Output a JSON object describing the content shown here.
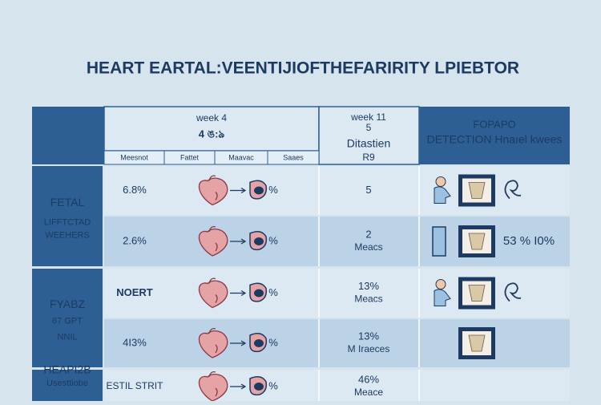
{
  "header": {
    "title": "HEART EARTAL:VEENTIJIOFTHEFARIRITY LPIEBTOR"
  },
  "table": {
    "columns": {
      "week4": {
        "title": "week 4",
        "subtitle": "4 ঙ:ঌ",
        "subcolumns": [
          "Meesnot",
          "Fattet",
          "Maavac",
          "Saaes"
        ]
      },
      "week11": {
        "lines": [
          "week 11",
          "5",
          "Ditastien",
          "R9"
        ]
      },
      "detection": {
        "lines": [
          "FOPAPO",
          "DETECTION Hnaıel kwees"
        ]
      }
    },
    "groups": [
      {
        "lines": [
          "FETAL",
          "LIFFTCTAD",
          "WEEHERS"
        ]
      },
      {
        "lines": [
          "FYABZ",
          "67 GPT",
          "NNIL"
        ]
      },
      {
        "lines": [
          "HEAPI2B",
          "Usesttiobe"
        ]
      }
    ],
    "rows": [
      {
        "value": "6.8%",
        "icon_label": "%",
        "week11": [
          "5"
        ]
      },
      {
        "value": "2.6%",
        "icon_label": "%",
        "week11": [
          "2",
          "Meacs"
        ],
        "note": "53 %  I0%"
      },
      {
        "value": "NOERT",
        "icon_label": "%",
        "week11": [
          "13%",
          "Meacs"
        ]
      },
      {
        "value": "4I3%",
        "icon_label": "%",
        "week11": [
          "13%",
          "M Iraeces"
        ]
      },
      {
        "value": "ESTIL STRIT",
        "icon_label": "%",
        "week11": [
          "46%",
          "Meace"
        ]
      }
    ]
  }
}
